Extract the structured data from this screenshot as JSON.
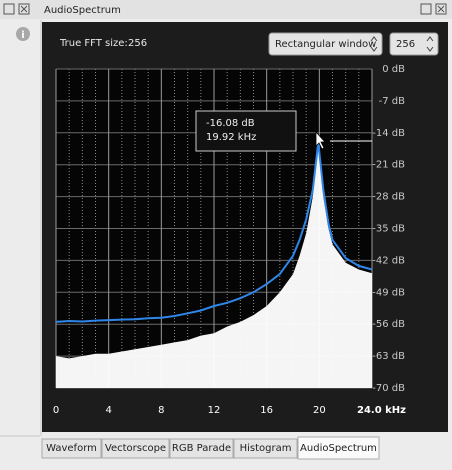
{
  "window": {
    "title": "AudioSpectrum"
  },
  "controls": {
    "fft_label": "True FFT size:",
    "fft_value": "256",
    "window_select": "Rectangular window",
    "size_select": "256"
  },
  "tabs": [
    "Waveform",
    "Vectorscope",
    "RGB Parade",
    "Histogram",
    "AudioSpectrum"
  ],
  "active_tab": 4,
  "chart_data": {
    "type": "area",
    "annotation": [
      "-16.08 dB",
      "19.92 kHz"
    ],
    "x": [
      0,
      1,
      2,
      3,
      4,
      5,
      6,
      7,
      8,
      9,
      10,
      11,
      12,
      13,
      14,
      15,
      16,
      17,
      18,
      18.5,
      19,
      19.5,
      19.92,
      20.3,
      20.7,
      21,
      22,
      23,
      24
    ],
    "series": [
      {
        "color": "#ffffff",
        "style": "fill",
        "values": [
          -63,
          -63.5,
          -63,
          -62.5,
          -62.5,
          -62,
          -61.5,
          -61,
          -60.5,
          -60,
          -59.5,
          -58.5,
          -58,
          -56.5,
          -55.5,
          -54,
          -52,
          -49,
          -45,
          -41,
          -36,
          -28,
          -17,
          -28,
          -35,
          -38.5,
          -42.5,
          -44,
          -44.8
        ]
      },
      {
        "color": "#2f86e8",
        "style": "line",
        "values": [
          -55.5,
          -55.3,
          -55.4,
          -55.2,
          -55.1,
          -55,
          -54.9,
          -54.7,
          -54.6,
          -54.2,
          -53.6,
          -53,
          -52,
          -51.3,
          -50.3,
          -49,
          -47.2,
          -45,
          -41,
          -37.5,
          -33,
          -26.5,
          -16.08,
          -26.5,
          -34,
          -37.5,
          -41.5,
          -43.2,
          -44
        ]
      }
    ],
    "xlim": [
      0,
      24
    ],
    "xticks": [
      0,
      4,
      8,
      12,
      16,
      20,
      {
        "value": 24,
        "label": "24.0 kHz"
      }
    ],
    "xminorticks": [
      1,
      2,
      3,
      5,
      6,
      7,
      9,
      10,
      11,
      13,
      14,
      15,
      17,
      18,
      19,
      21,
      22,
      23
    ],
    "ylim": [
      -70,
      0
    ],
    "yticks": [
      {
        "value": 0,
        "label": "0 dB"
      },
      {
        "value": -7,
        "label": "-7 dB"
      },
      {
        "value": -14,
        "label": "-14 dB"
      },
      {
        "value": -21,
        "label": "-21 dB"
      },
      {
        "value": -28,
        "label": "-28 dB"
      },
      {
        "value": -35,
        "label": "-35 dB"
      },
      {
        "value": -42,
        "label": "-42 dB"
      },
      {
        "value": -49,
        "label": "-49 dB"
      },
      {
        "value": -56,
        "label": "-56 dB"
      },
      {
        "value": -63,
        "label": "-63 dB"
      },
      {
        "value": -70,
        "label": "-70 dB"
      }
    ],
    "grid": true
  }
}
